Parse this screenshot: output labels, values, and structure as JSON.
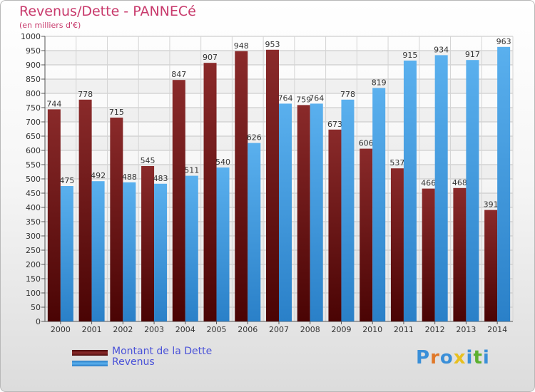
{
  "title": "Revenus/Dette - PANNECé",
  "subtitle": "(en milliers d'€)",
  "logo": {
    "text": "Proxiti",
    "letters": [
      {
        "ch": "P",
        "color": "#3a8fd8"
      },
      {
        "ch": "r",
        "color": "#e07828"
      },
      {
        "ch": "o",
        "color": "#3a8fd8"
      },
      {
        "ch": "x",
        "color": "#e8c020"
      },
      {
        "ch": "i",
        "color": "#3a8fd8"
      },
      {
        "ch": "t",
        "color": "#5cb030"
      },
      {
        "ch": "i",
        "color": "#3a8fd8"
      }
    ]
  },
  "legend": [
    {
      "name": "Montant de la Dette",
      "color": "#7a1a1a"
    },
    {
      "name": "Revenus",
      "color": "#3d9be0"
    }
  ],
  "chart_data": {
    "type": "bar",
    "categories": [
      "2000",
      "2001",
      "2002",
      "2003",
      "2004",
      "2005",
      "2006",
      "2007",
      "2008",
      "2009",
      "2010",
      "2011",
      "2012",
      "2013",
      "2014"
    ],
    "series": [
      {
        "name": "Montant de la Dette",
        "color": "#7a1a1a",
        "values": [
          744,
          778,
          715,
          545,
          847,
          907,
          948,
          953,
          759,
          673,
          606,
          537,
          466,
          468,
          391
        ],
        "labels": [
          "744",
          "778",
          "715",
          "545",
          "847",
          "907",
          "948",
          "953",
          "759",
          "673",
          "606",
          "537",
          "466",
          "468",
          "391"
        ]
      },
      {
        "name": "Revenus",
        "color": "#3d9be0",
        "values": [
          475,
          492,
          488,
          483,
          511,
          540,
          626,
          764,
          764,
          778,
          819,
          915,
          934,
          917,
          963
        ],
        "labels": [
          "475",
          "492",
          "488",
          "483",
          "511",
          "540",
          "626",
          "764",
          "764",
          "778",
          "819",
          "915",
          "934",
          "917",
          "963"
        ]
      }
    ],
    "ylim": [
      0,
      1000
    ],
    "yticks": [
      "0",
      "50",
      "100",
      "150",
      "200",
      "250",
      "300",
      "350",
      "400",
      "450",
      "500",
      "550",
      "600",
      "650",
      "700",
      "750",
      "800",
      "850",
      "900",
      "950",
      "1000"
    ],
    "grid": true,
    "legend_position": "bottom-left"
  }
}
